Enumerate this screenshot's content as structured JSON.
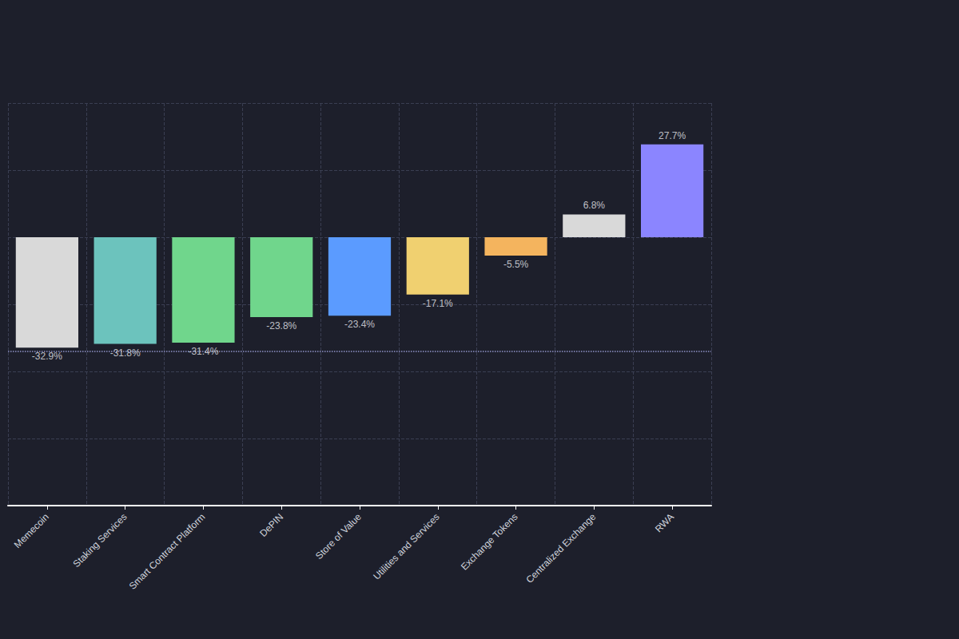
{
  "chart_data": {
    "type": "bar",
    "categories": [
      "Memecoin",
      "Staking Services",
      "Smart Contract Platform",
      "DePIN",
      "Store of Value",
      "Utilities and Services",
      "Exchange Tokens",
      "Centralized Exchange",
      "RWA"
    ],
    "values": [
      -32.9,
      -31.8,
      -31.4,
      -23.8,
      -23.4,
      -17.1,
      -5.5,
      6.8,
      27.7
    ],
    "value_labels": [
      "-32.9%",
      "-31.8%",
      "-31.4%",
      "-23.8%",
      "-23.4%",
      "-17.1%",
      "-5.5%",
      "6.8%",
      "27.7%"
    ],
    "colors": [
      "#d9d9d9",
      "#6cc3bd",
      "#70d68c",
      "#70d68c",
      "#5b9bff",
      "#f0d070",
      "#f4b45e",
      "#d9d9d9",
      "#8b85ff"
    ],
    "ylim": [
      -80,
      40
    ],
    "yticks": [
      -80,
      -60,
      -40,
      -20,
      0,
      20,
      40
    ],
    "grid": true,
    "data_labels": true,
    "tick_labels": "x",
    "reference_line": -34
  }
}
